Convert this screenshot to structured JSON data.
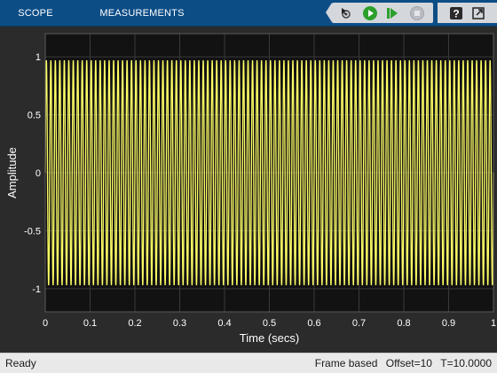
{
  "toolstrip": {
    "tabs": [
      {
        "label": "SCOPE"
      },
      {
        "label": "MEASUREMENTS"
      }
    ],
    "tools": [
      {
        "icon": "pointer-settings-icon"
      },
      {
        "icon": "run-icon"
      },
      {
        "icon": "step-forward-icon"
      },
      {
        "icon": "stop-icon"
      },
      {
        "icon": "help-icon"
      },
      {
        "icon": "undock-icon"
      }
    ],
    "colors": {
      "bar": "#0d4d86",
      "panel": "#d4d7dc",
      "run": "#2ca02c"
    }
  },
  "chart_data": {
    "type": "line",
    "title": "",
    "xlabel": "Time (secs)",
    "ylabel": "Amplitude",
    "xlim": [
      0,
      1.0
    ],
    "ylim": [
      -1.2,
      1.2
    ],
    "x_ticks": [
      "0",
      "0.1",
      "0.2",
      "0.3",
      "0.4",
      "0.5",
      "0.6",
      "0.7",
      "0.8",
      "0.9",
      "1"
    ],
    "y_ticks": [
      "1",
      "0.5",
      "0",
      "-0.5",
      "-1"
    ],
    "grid": true,
    "series": [
      {
        "signal": "sine",
        "frequency_hz": 100,
        "amplitude": 0.97,
        "color": "#ffff66"
      }
    ],
    "colors": {
      "axes_bg": "#121212",
      "figure_bg": "#2b2b2b",
      "grid": "#3a3a3a"
    }
  },
  "status": {
    "state": "Ready",
    "frame_mode": "Frame based",
    "offset": "Offset=10",
    "time": "T=10.0000"
  }
}
